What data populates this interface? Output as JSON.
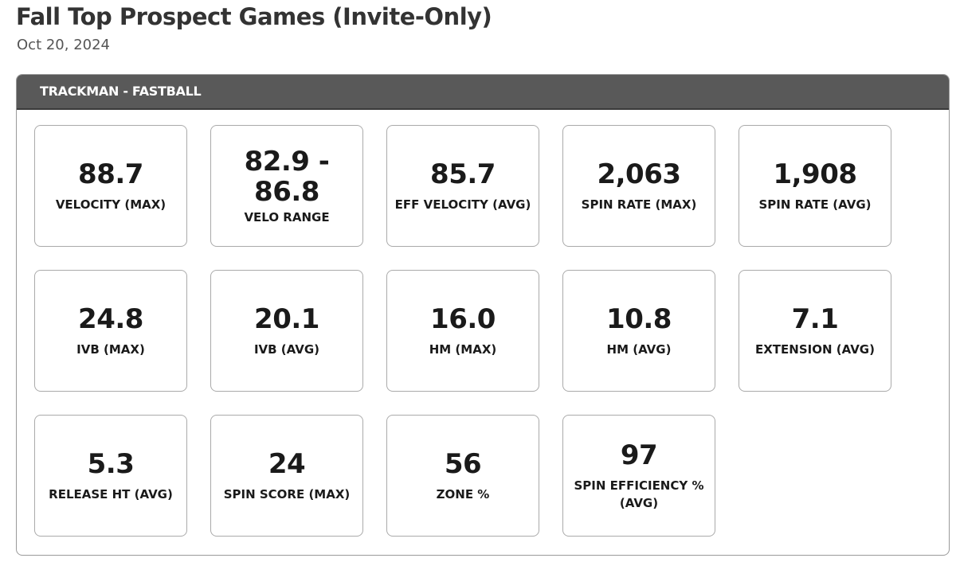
{
  "page": {
    "title": "Fall Top Prospect Games (Invite-Only)",
    "date": "Oct 20, 2024"
  },
  "panel": {
    "header": "TRACKMAN - FASTBALL"
  },
  "metrics": [
    {
      "value": "88.7",
      "label": "VELOCITY (MAX)"
    },
    {
      "value": "82.9 - 86.8",
      "label": "VELO RANGE"
    },
    {
      "value": "85.7",
      "label": "EFF VELOCITY (AVG)"
    },
    {
      "value": "2,063",
      "label": "SPIN RATE (MAX)"
    },
    {
      "value": "1,908",
      "label": "SPIN RATE (AVG)"
    },
    {
      "value": "24.8",
      "label": "IVB (MAX)"
    },
    {
      "value": "20.1",
      "label": "IVB (AVG)"
    },
    {
      "value": "16.0",
      "label": "HM (MAX)"
    },
    {
      "value": "10.8",
      "label": "HM (AVG)"
    },
    {
      "value": "7.1",
      "label": "EXTENSION (AVG)"
    },
    {
      "value": "5.3",
      "label": "RELEASE HT (AVG)"
    },
    {
      "value": "24",
      "label": "SPIN SCORE (MAX)"
    },
    {
      "value": "56",
      "label": "ZONE %"
    },
    {
      "value": "97",
      "label": "SPIN EFFICIENCY % (AVG)"
    }
  ]
}
